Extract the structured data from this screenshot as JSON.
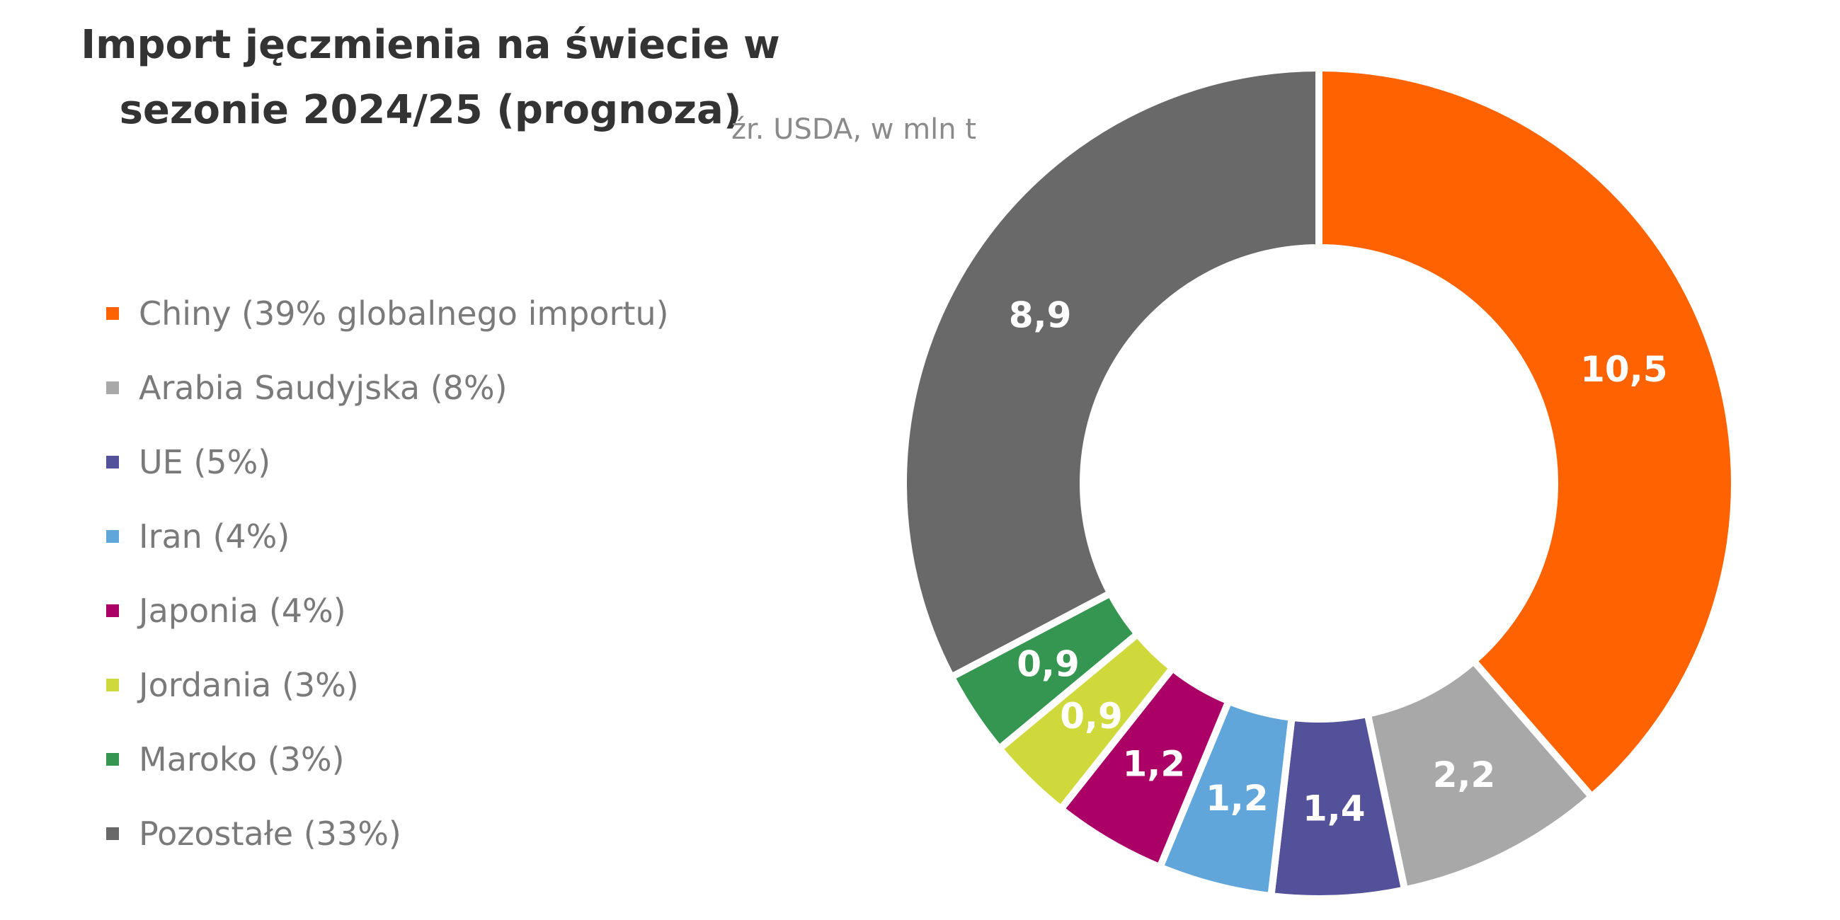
{
  "chart_data": {
    "type": "pie",
    "variant": "donut",
    "title": "Import jęczmienia na świecie w sezonie 2024/25 (prognoza)",
    "subtitle": "źr. USDA, w mln t",
    "legend_position": "left",
    "series": [
      {
        "name": "Chiny (39% globalnego importu)",
        "value": 10.5,
        "label": "10,5",
        "color": "#FF6200"
      },
      {
        "name": "Arabia Saudyjska (8%)",
        "value": 2.2,
        "label": "2,2",
        "color": "#A8A8A8"
      },
      {
        "name": "UE (5%)",
        "value": 1.4,
        "label": "1,4",
        "color": "#525199"
      },
      {
        "name": "Iran (4%)",
        "value": 1.2,
        "label": "1,2",
        "color": "#60A6DA"
      },
      {
        "name": "Japonia (4%)",
        "value": 1.2,
        "label": "1,2",
        "color": "#AB0066"
      },
      {
        "name": "Jordania (3%)",
        "value": 0.9,
        "label": "0,9",
        "color": "#D0D93C"
      },
      {
        "name": "Maroko (3%)",
        "value": 0.9,
        "label": "0,9",
        "color": "#349651"
      },
      {
        "name": "Pozostałe (33%)",
        "value": 8.9,
        "label": "8,9",
        "color": "#696969"
      }
    ]
  }
}
